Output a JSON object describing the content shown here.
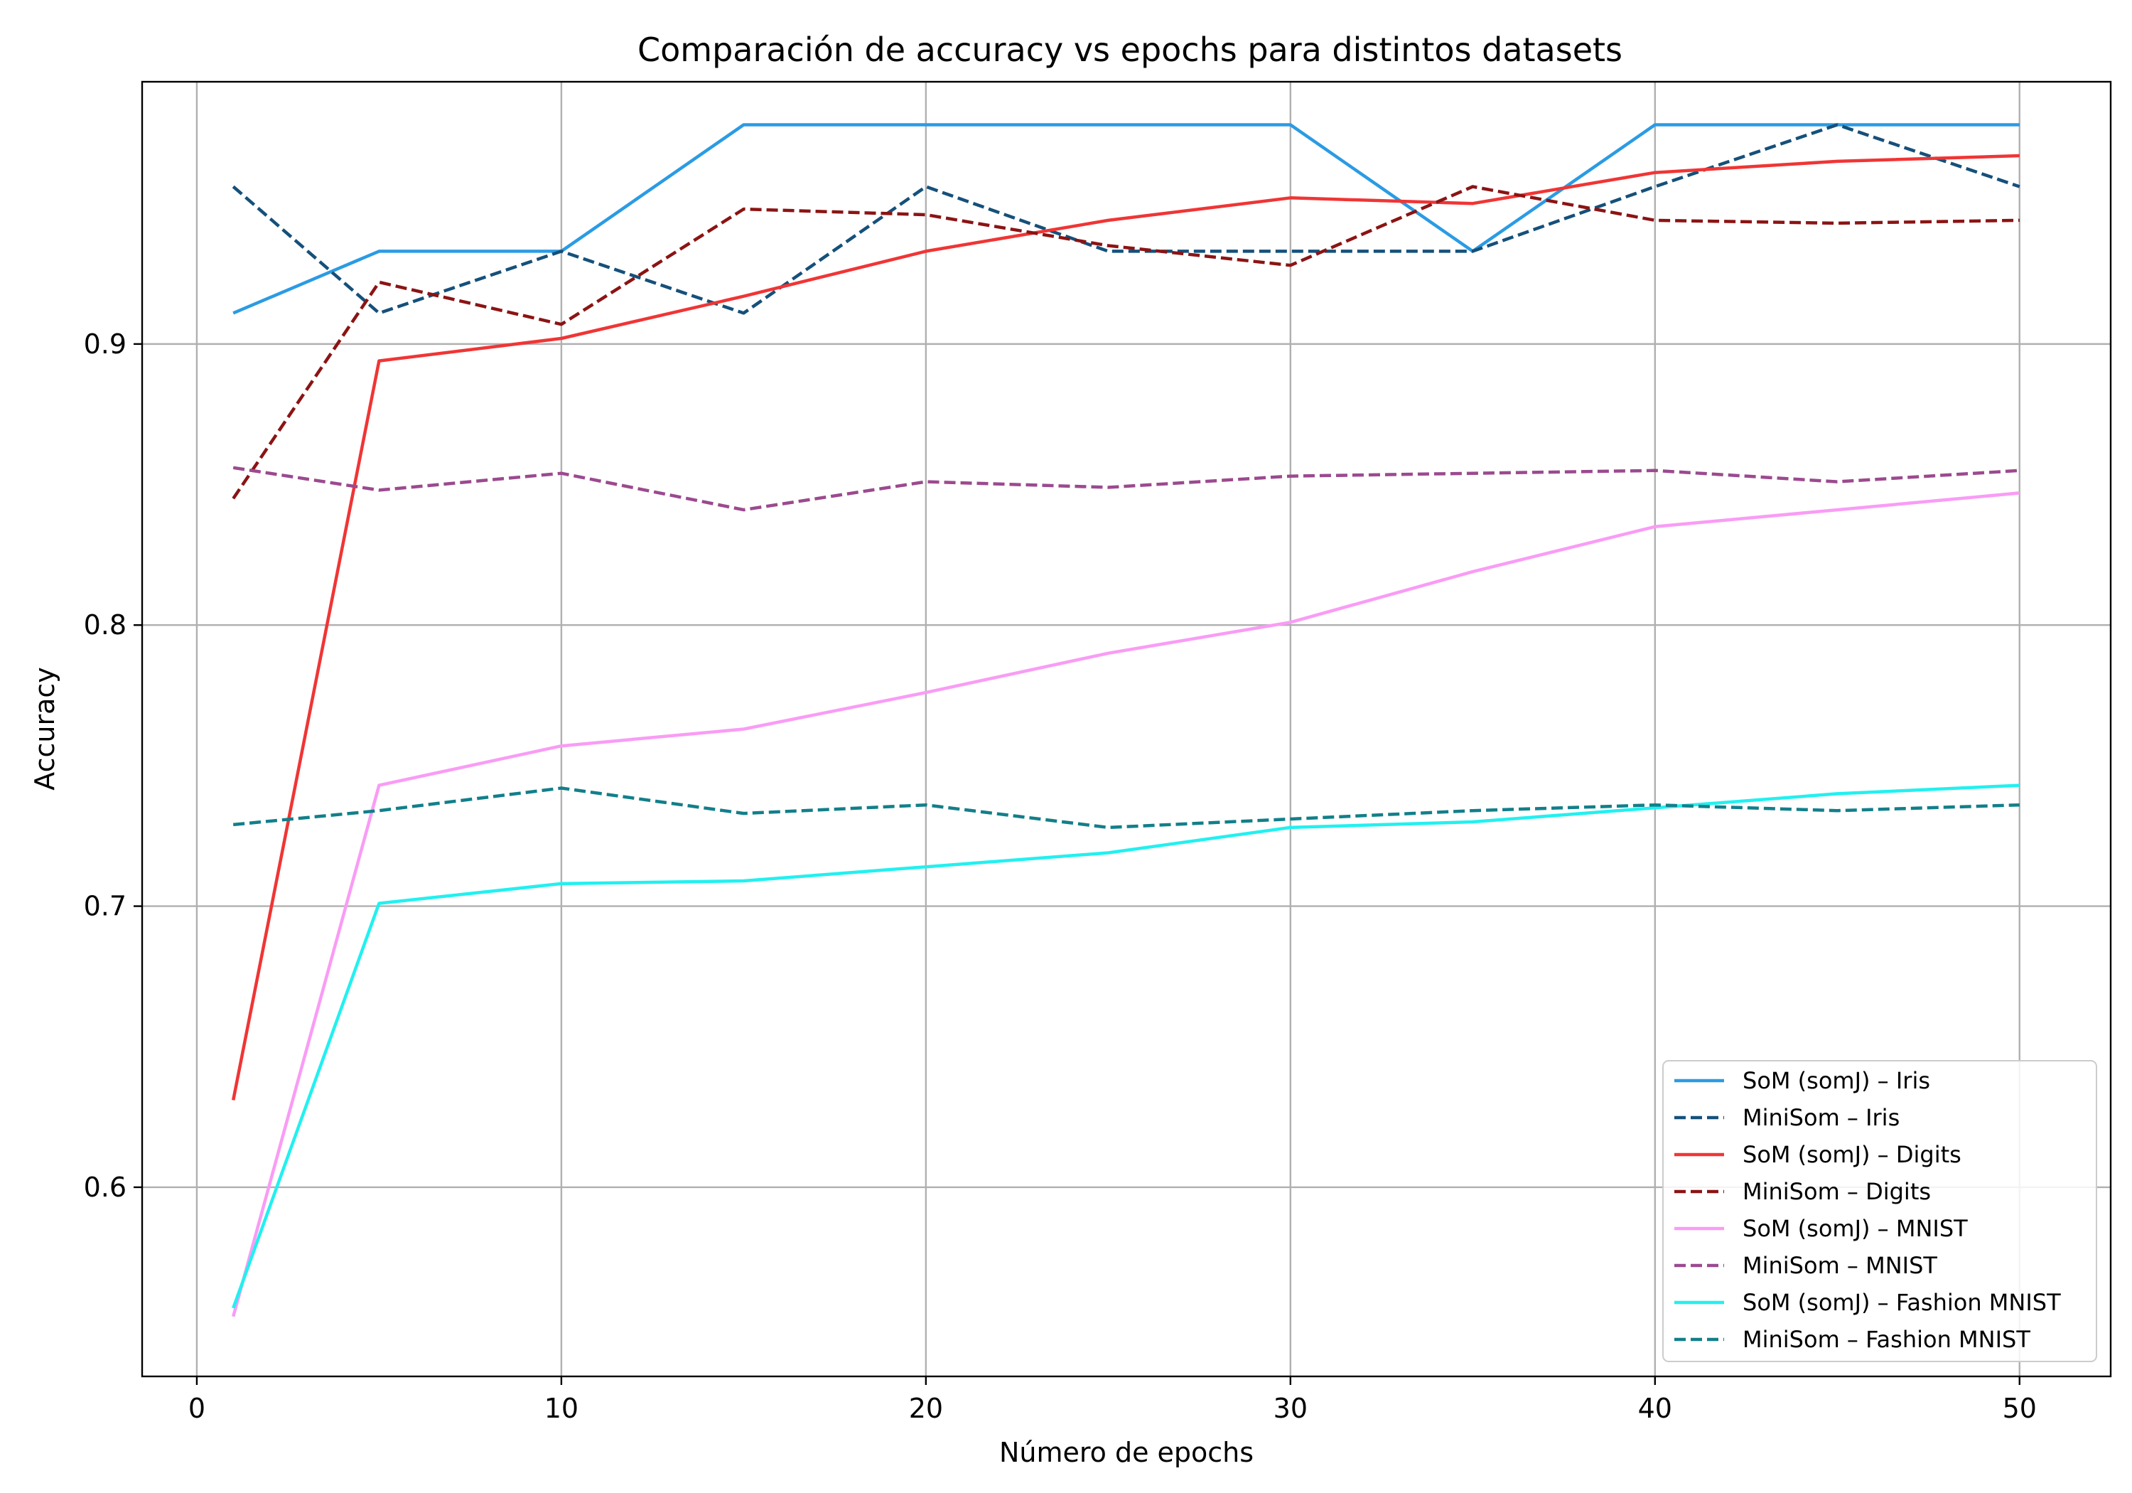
{
  "chart_data": {
    "type": "line",
    "title": "Comparación de accuracy vs epochs para distintos datasets",
    "xlabel": "Número de epochs",
    "ylabel": "Accuracy",
    "xlim": [
      -1.5,
      52.5
    ],
    "ylim": [
      0.5327,
      0.9933
    ],
    "xticks": [
      0,
      10,
      20,
      30,
      40,
      50
    ],
    "xtick_labels": [
      "0",
      "10",
      "20",
      "30",
      "40",
      "50"
    ],
    "yticks": [
      0.6,
      0.7,
      0.8,
      0.9
    ],
    "ytick_labels": [
      "0.6",
      "0.7",
      "0.8",
      "0.9"
    ],
    "grid": true,
    "legend_position": "bottom-right",
    "x": [
      1,
      5,
      10,
      15,
      20,
      25,
      30,
      35,
      40,
      45,
      50
    ],
    "series": [
      {
        "name": "SoM (somJ) – Iris",
        "color": "#2b9be3",
        "dash": "solid",
        "values": [
          0.911,
          0.933,
          0.933,
          0.978,
          0.978,
          0.978,
          0.978,
          0.933,
          0.978,
          0.978,
          0.978
        ]
      },
      {
        "name": "MiniSom – Iris",
        "color": "#15507a",
        "dash": "dashed",
        "values": [
          0.956,
          0.911,
          0.933,
          0.911,
          0.956,
          0.933,
          0.933,
          0.933,
          0.956,
          0.978,
          0.956
        ]
      },
      {
        "name": "SoM (somJ) – Digits",
        "color": "#f03535",
        "dash": "solid",
        "values": [
          0.631,
          0.894,
          0.902,
          0.917,
          0.933,
          0.944,
          0.952,
          0.95,
          0.961,
          0.965,
          0.967
        ]
      },
      {
        "name": "MiniSom – Digits",
        "color": "#8b1414",
        "dash": "dashed",
        "values": [
          0.845,
          0.922,
          0.907,
          0.948,
          0.946,
          0.935,
          0.928,
          0.956,
          0.944,
          0.943,
          0.944
        ]
      },
      {
        "name": "SoM (somJ) – MNIST",
        "color": "#f99cf5",
        "dash": "solid",
        "values": [
          0.554,
          0.743,
          0.757,
          0.763,
          0.776,
          0.79,
          0.801,
          0.819,
          0.835,
          0.841,
          0.847
        ]
      },
      {
        "name": "MiniSom – MNIST",
        "color": "#9b4a8f",
        "dash": "dashed",
        "values": [
          0.856,
          0.848,
          0.854,
          0.841,
          0.851,
          0.849,
          0.853,
          0.854,
          0.855,
          0.851,
          0.855
        ]
      },
      {
        "name": "SoM (somJ) – Fashion MNIST",
        "color": "#22f0f0",
        "dash": "solid",
        "values": [
          0.557,
          0.701,
          0.708,
          0.709,
          0.714,
          0.719,
          0.728,
          0.73,
          0.735,
          0.74,
          0.743
        ]
      },
      {
        "name": "MiniSom – Fashion MNIST",
        "color": "#127f8a",
        "dash": "dashed",
        "values": [
          0.729,
          0.734,
          0.742,
          0.733,
          0.736,
          0.728,
          0.731,
          0.734,
          0.736,
          0.734,
          0.736
        ]
      }
    ]
  }
}
